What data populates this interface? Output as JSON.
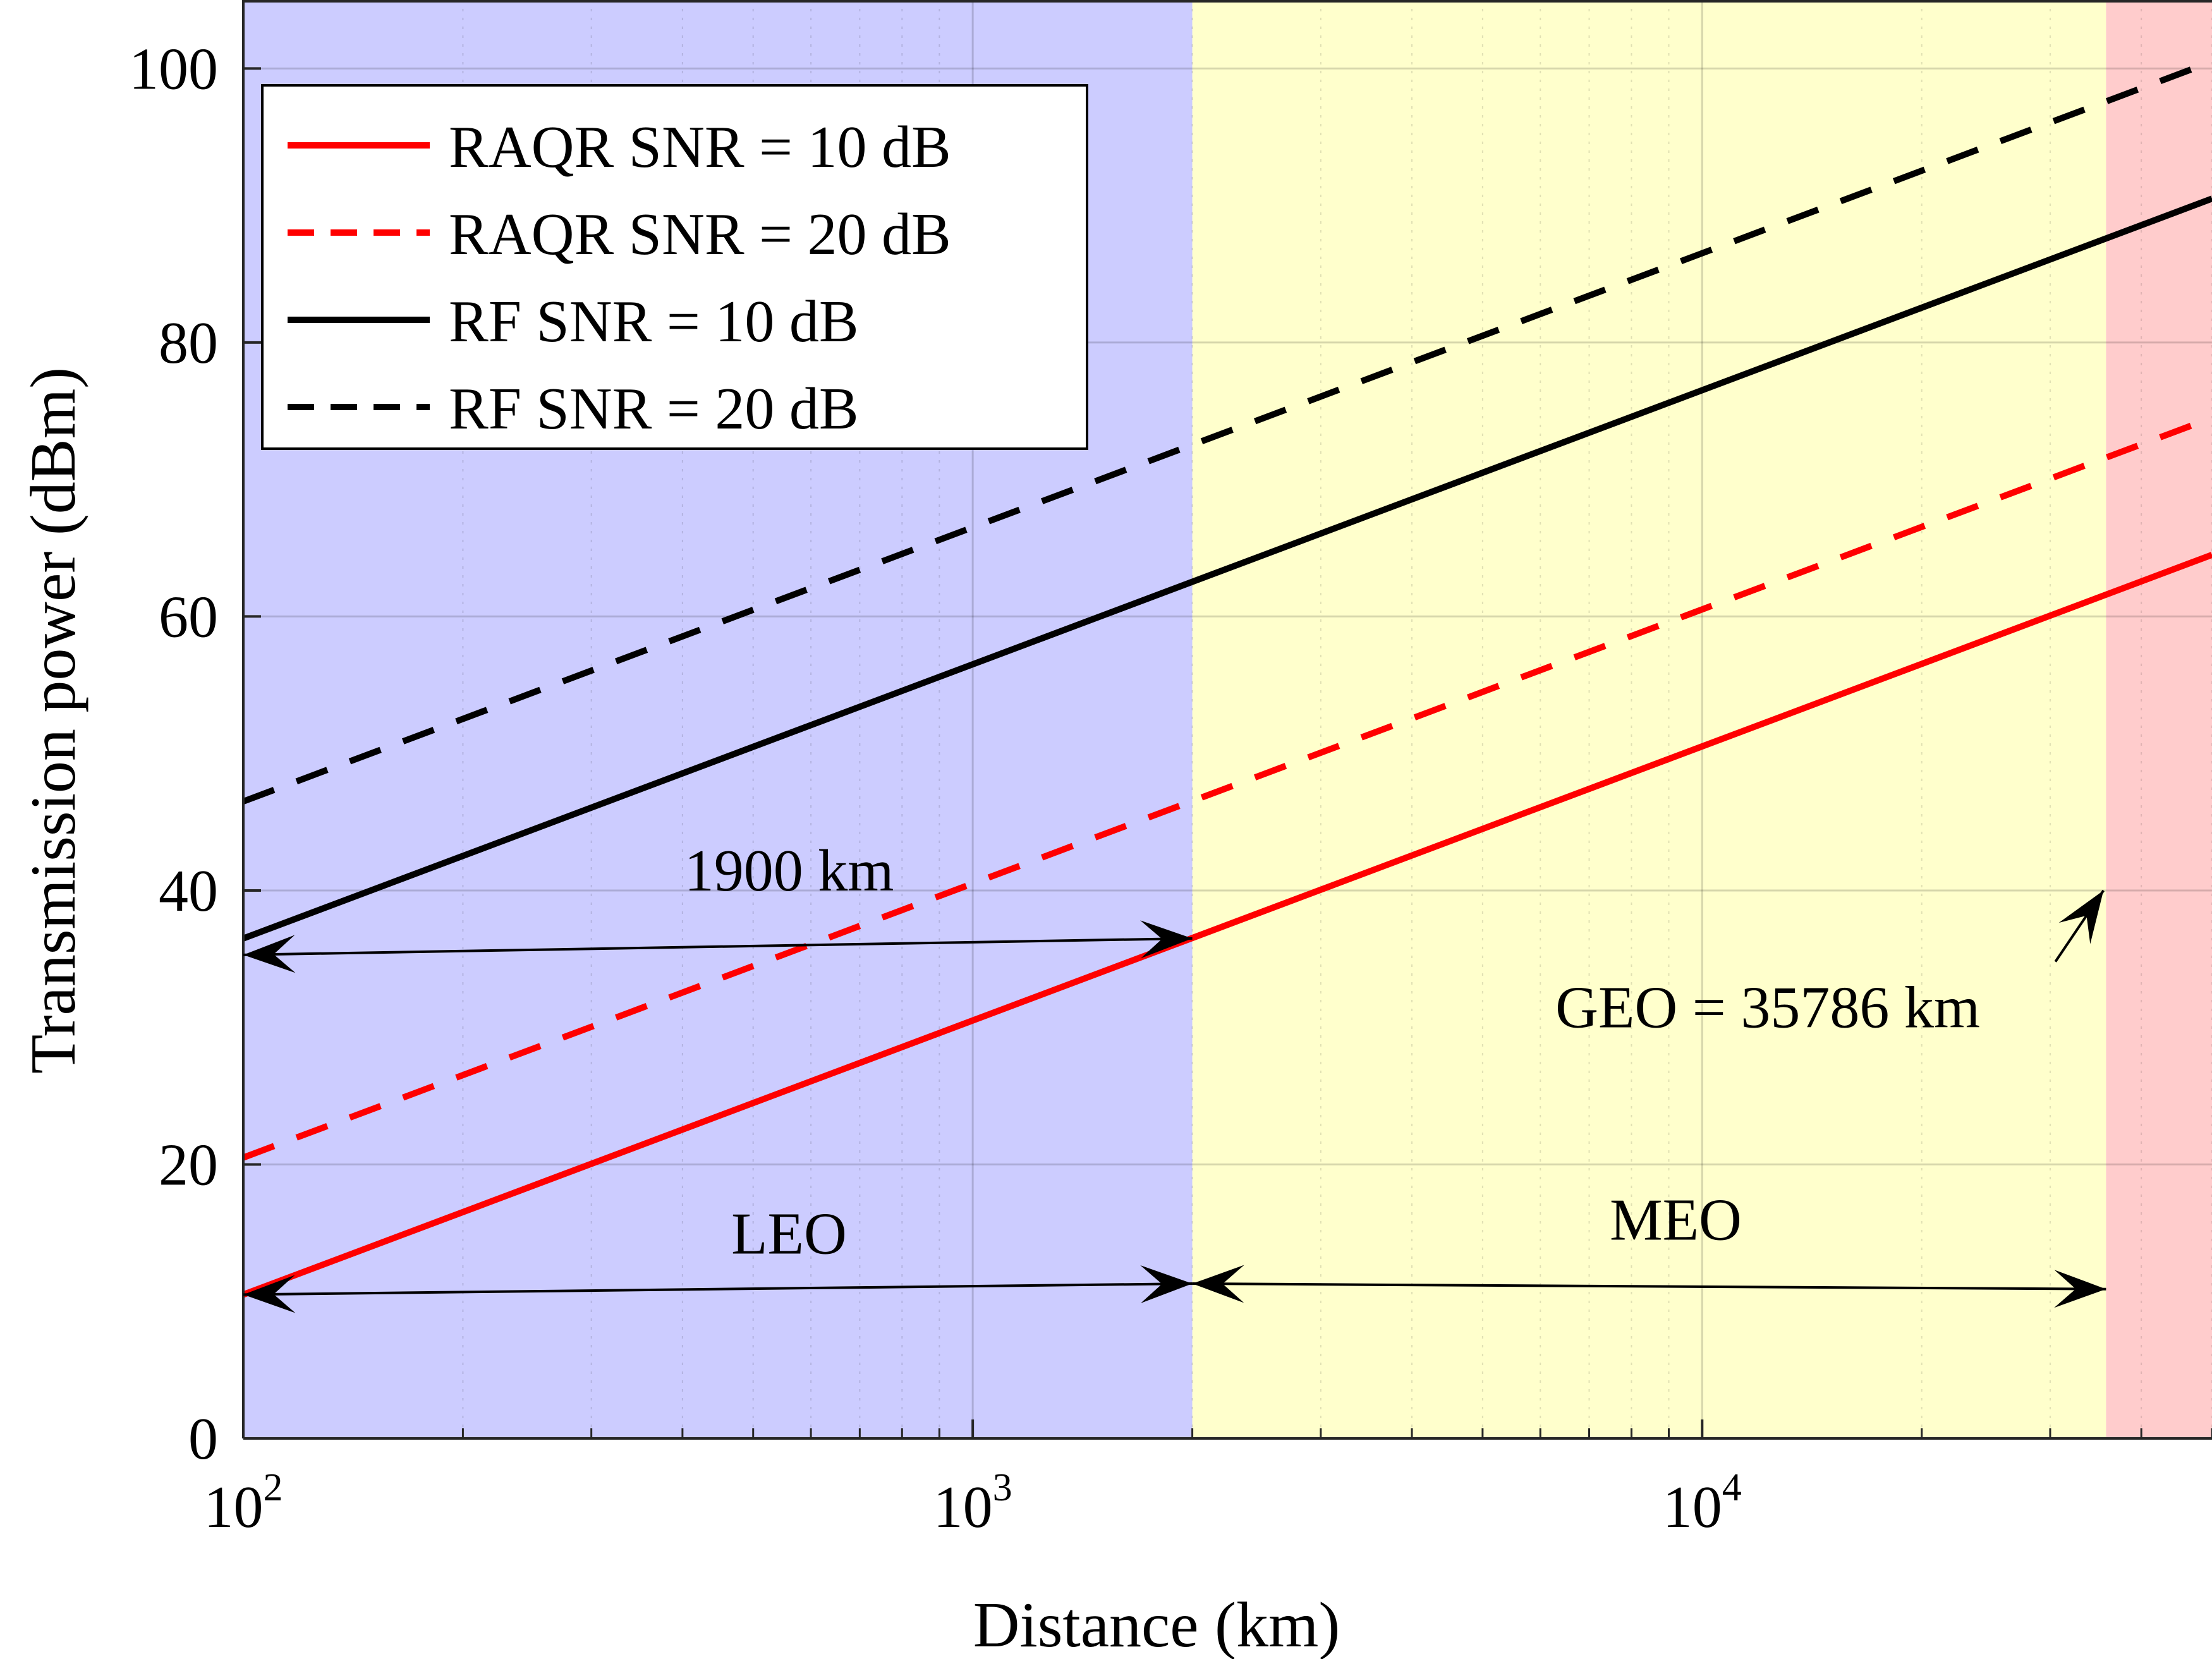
{
  "chart_data": {
    "type": "line",
    "title": "",
    "xlabel": "Distance (km)",
    "ylabel": "Transmission power (dBm)",
    "xscale": "log",
    "xlim": [
      100,
      50000
    ],
    "ylim": [
      0,
      105
    ],
    "xticks": [
      {
        "value": 100,
        "base": "10",
        "exp": "2"
      },
      {
        "value": 1000,
        "base": "10",
        "exp": "3"
      },
      {
        "value": 10000,
        "base": "10",
        "exp": "4"
      }
    ],
    "yticks": [
      0,
      20,
      40,
      60,
      80,
      100
    ],
    "grid": true,
    "legend_position": "top-left",
    "regions": [
      {
        "name": "LEO",
        "from": 100,
        "to": 2000,
        "color": "#ccccff"
      },
      {
        "name": "MEO",
        "from": 2000,
        "to": 35786,
        "color": "#ffffcc"
      },
      {
        "name": "GEO",
        "from": 35786,
        "to": 50000,
        "color": "#ffcccc"
      }
    ],
    "series": [
      {
        "name": "RAQR SNR = 10 dB",
        "color": "#ff0000",
        "dash": "solid",
        "x": [
          100,
          50000
        ],
        "y": [
          10.5,
          64.5
        ]
      },
      {
        "name": "RAQR SNR = 20 dB",
        "color": "#ff0000",
        "dash": "dashed",
        "x": [
          100,
          50000
        ],
        "y": [
          20.5,
          74.5
        ]
      },
      {
        "name": "RF SNR = 10 dB",
        "color": "#000000",
        "dash": "solid",
        "x": [
          100,
          50000
        ],
        "y": [
          36.5,
          90.5
        ]
      },
      {
        "name": "RF SNR = 20 dB",
        "color": "#000000",
        "dash": "dashed",
        "x": [
          100,
          50000
        ],
        "y": [
          46.5,
          100.5
        ]
      }
    ],
    "annotations": [
      {
        "text": "1900 km",
        "label_at": [
          560,
          40
        ],
        "arrow_from": [
          100,
          35.3
        ],
        "arrow_to": [
          2000,
          36.5
        ],
        "double": true
      },
      {
        "text": "LEO",
        "label_at": [
          560,
          13.5
        ],
        "arrow_from": [
          100,
          10.5
        ],
        "arrow_to": [
          2000,
          11.3
        ],
        "double": true
      },
      {
        "text": "MEO",
        "label_at": [
          9200,
          14.5
        ],
        "arrow_from": [
          2000,
          11.3
        ],
        "arrow_to": [
          35786,
          10.9
        ],
        "double": true
      },
      {
        "text": "GEO = 35786 km",
        "label_at": [
          12300,
          30
        ],
        "arrow_from": [
          30500,
          34.8
        ],
        "arrow_to": [
          35500,
          40
        ],
        "double": false
      }
    ]
  }
}
